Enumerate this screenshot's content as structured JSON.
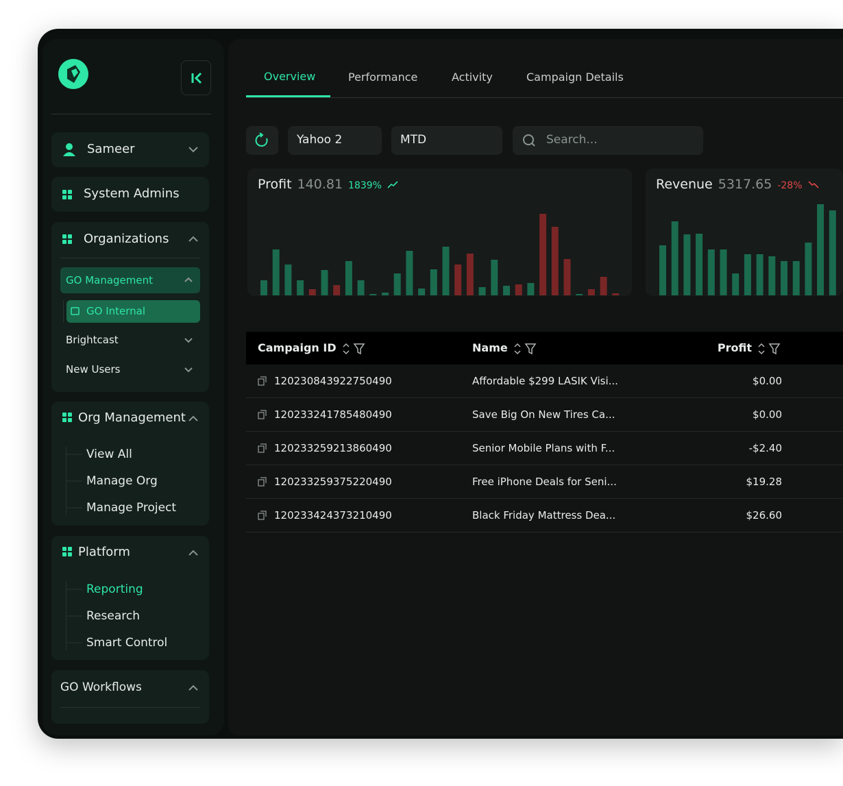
{
  "sidebar": {
    "user": "Sameer",
    "system_admins": "System Admins",
    "organizations": {
      "title": "Organizations",
      "go_management": "GO Management",
      "go_internal": "GO Internal",
      "items": [
        "Brightcast",
        "New Users"
      ]
    },
    "org_management": {
      "title": "Org Management",
      "items": [
        "View All",
        "Manage Org",
        "Manage Project"
      ]
    },
    "platform": {
      "title": "Platform",
      "items": [
        "Reporting",
        "Research",
        "Smart Control"
      ]
    },
    "go_workflows": "GO Workflows"
  },
  "tabs": [
    "Overview",
    "Performance",
    "Activity",
    "Campaign Details"
  ],
  "filters": {
    "source": "Yahoo 2",
    "period": "MTD",
    "search": "Search..."
  },
  "cards": [
    {
      "label": "Profit",
      "value": "140.81",
      "change": "1839%",
      "trend": "up",
      "change_color": "#2ee6a6",
      "bars": [
        22,
        67,
        45,
        22,
        9,
        37,
        15,
        50,
        22,
        2,
        4,
        32,
        65,
        10,
        38,
        71,
        45,
        61,
        12,
        52,
        14,
        16,
        18,
        119,
        100,
        53,
        2,
        9,
        27,
        3
      ],
      "bar_colors": [
        "#1b6b4f",
        "#1b6b4f",
        "#1b6b4f",
        "#1b6b4f",
        "#7a2626",
        "#1b6b4f",
        "#7a2626",
        "#1b6b4f",
        "#1b6b4f",
        "#1b6b4f",
        "#1b6b4f",
        "#1b6b4f",
        "#1b6b4f",
        "#1b6b4f",
        "#1b6b4f",
        "#1b6b4f",
        "#7a2626",
        "#7a2626",
        "#1b6b4f",
        "#1b6b4f",
        "#1b6b4f",
        "#7a2626",
        "#1b6b4f",
        "#7a2626",
        "#7a2626",
        "#7a2626",
        "#1b6b4f",
        "#7a2626",
        "#7a2626",
        "#7a2626"
      ]
    },
    {
      "label": "Revenue",
      "value": "5317.65",
      "change": "-28%",
      "trend": "down",
      "change_color": "#e04848",
      "bars": [
        73,
        108,
        89,
        90,
        67,
        67,
        32,
        60,
        60,
        57,
        50,
        50,
        77,
        133,
        124
      ],
      "bar_colors": [
        "#1b6b4f",
        "#1b6b4f",
        "#1b6b4f",
        "#1b6b4f",
        "#1b6b4f",
        "#1b6b4f",
        "#1b6b4f",
        "#1b6b4f",
        "#1b6b4f",
        "#1b6b4f",
        "#1b6b4f",
        "#1b6b4f",
        "#1b6b4f",
        "#1b6b4f",
        "#1b6b4f"
      ]
    }
  ],
  "table": {
    "columns": [
      "Campaign ID",
      "Name",
      "Profit"
    ],
    "rows": [
      [
        "120230843922750490",
        "Affordable $299 LASIK Visi...",
        "$0.00"
      ],
      [
        "120233241785480490",
        "Save Big On New Tires Ca...",
        "$0.00"
      ],
      [
        "120233259213860490",
        "Senior Mobile Plans with F...",
        "-$2.40"
      ],
      [
        "120233259375220490",
        "Free iPhone Deals for Seni...",
        "$19.28"
      ],
      [
        "120233424373210490",
        "Black Friday Mattress Dea...",
        "$26.60"
      ]
    ]
  }
}
